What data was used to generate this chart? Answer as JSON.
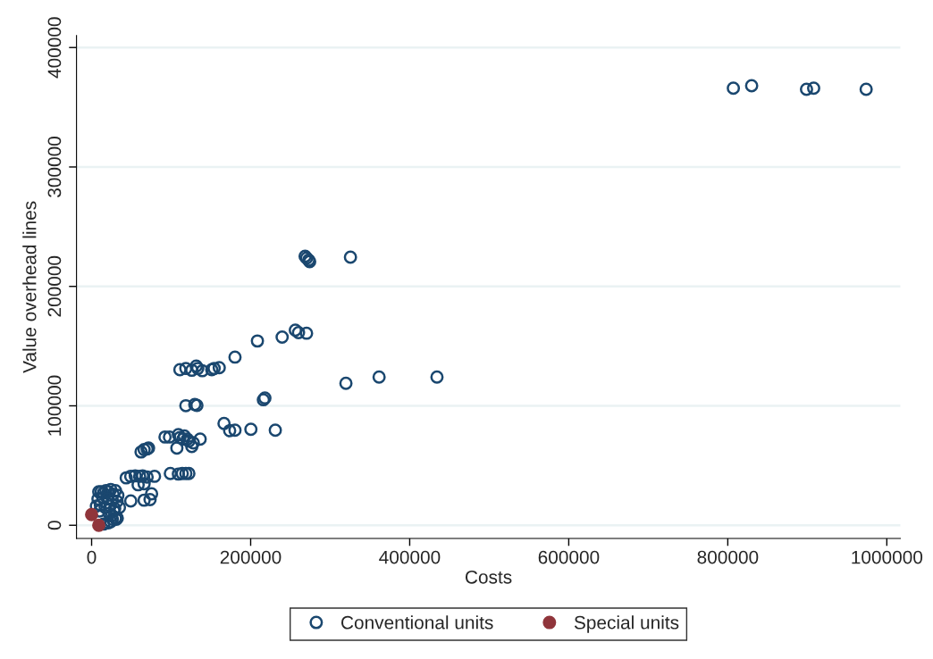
{
  "chart_data": {
    "type": "scatter",
    "xlabel": "Costs",
    "ylabel": "Value overhead lines",
    "xlim": [
      -19000,
      1017000
    ],
    "ylim": [
      -11000,
      410000
    ],
    "xticks": [
      0,
      200000,
      400000,
      600000,
      800000,
      1000000
    ],
    "yticks": [
      0,
      100000,
      200000,
      300000,
      400000
    ],
    "grid": "y",
    "legend": "bottom",
    "marker": "circle",
    "series": [
      {
        "name": "Conventional units",
        "color": "#1a476f",
        "x": [
          807000,
          830000,
          899000,
          908000,
          974000,
          268500,
          273000,
          274200,
          270300,
          325500,
          208500,
          239600,
          256200,
          260200,
          270300,
          180300,
          111000,
          118500,
          126000,
          131600,
          133500,
          139200,
          151100,
          154100,
          160500,
          319800,
          361500,
          434300,
          118500,
          129700,
          132400,
          216000,
          217900,
          166500,
          173600,
          180300,
          200300,
          231000,
          92300,
          97900,
          109100,
          111000,
          114800,
          116600,
          120400,
          122300,
          126000,
          127900,
          136500,
          107200,
          62200,
          66000,
          69800,
          71600,
          99000,
          109100,
          114000,
          118500,
          122300,
          43500,
          49200,
          54800,
          60400,
          64100,
          69800,
          79100,
          58500,
          66000,
          49200,
          66000,
          75400,
          73500,
          9000,
          12000,
          15000,
          18000,
          21000,
          24000,
          27000,
          30000,
          33000,
          8000,
          14000,
          20000,
          26000,
          32000,
          6000,
          11000,
          17000,
          23000,
          29000,
          35000,
          10000,
          22000,
          28000,
          25000,
          31000,
          24000,
          15000,
          21000,
          30000,
          32300,
          26000
        ],
        "values": [
          366000,
          368000,
          365000,
          366000,
          365000,
          225200,
          222000,
          220700,
          223700,
          224500,
          154300,
          157500,
          163300,
          161300,
          160800,
          140800,
          130300,
          131300,
          129800,
          133300,
          131300,
          129400,
          130300,
          131300,
          132000,
          118900,
          124100,
          124100,
          100100,
          101100,
          100400,
          105100,
          106600,
          85200,
          79200,
          79600,
          80400,
          79600,
          73900,
          73900,
          75900,
          73400,
          72100,
          74700,
          72100,
          70400,
          65900,
          68900,
          72100,
          64600,
          61400,
          63400,
          63900,
          64600,
          43400,
          42900,
          43400,
          43400,
          43400,
          39700,
          41000,
          41400,
          41000,
          41400,
          40400,
          41000,
          33900,
          34700,
          20400,
          21000,
          26400,
          21500,
          28000,
          28000,
          27000,
          29000,
          28000,
          30000,
          26000,
          29000,
          25000,
          22000,
          23000,
          22000,
          21000,
          20000,
          16000,
          17000,
          15000,
          16000,
          14000,
          15000,
          12000,
          10000,
          12000,
          8000,
          5000,
          3000,
          1000,
          2000,
          6000,
          6000,
          5000
        ]
      },
      {
        "name": "Special units",
        "color": "#90353b",
        "x": [
          0,
          9000
        ],
        "values": [
          9000,
          0
        ]
      }
    ]
  }
}
